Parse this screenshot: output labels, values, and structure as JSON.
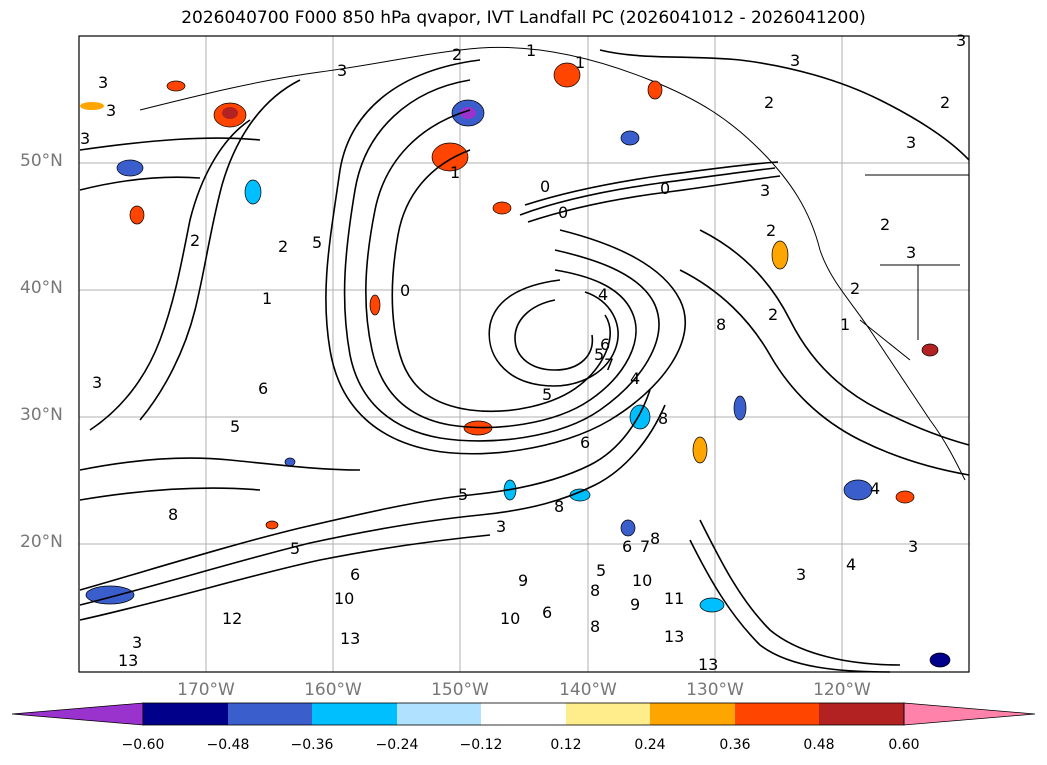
{
  "title": "2026040700 F000 850 hPa qvapor, IVT Landfall PC (2026041012 - 2026041200)",
  "axes": {
    "lat_labels": [
      "50°N",
      "40°N",
      "30°N",
      "20°N"
    ],
    "lon_labels": [
      "170°W",
      "160°W",
      "150°W",
      "140°W",
      "130°W",
      "120°W"
    ]
  },
  "colorbar": {
    "tick_labels": [
      "−0.60",
      "−0.48",
      "−0.36",
      "−0.24",
      "−0.12",
      "0.12",
      "0.24",
      "0.36",
      "0.48",
      "0.60"
    ],
    "colors": [
      "#9a32cd",
      "#00008b",
      "#3a5fcd",
      "#00bfff",
      "#b0e2ff",
      "#ffffff",
      "#ffec8b",
      "#ffa500",
      "#ff4500",
      "#b22222",
      "#ff82ab"
    ]
  },
  "contour_labels": [
    "3",
    "1",
    "2",
    "1",
    "3",
    "3",
    "2",
    "3",
    "1",
    "3",
    "3",
    "3",
    "2",
    "2",
    "2",
    "0",
    "0",
    "0",
    "3",
    "2",
    "1",
    "2",
    "5",
    "3",
    "3",
    "2",
    "0",
    "1",
    "4",
    "2",
    "5",
    "6",
    "4",
    "5",
    "7",
    "8",
    "6",
    "5",
    "6",
    "8",
    "8",
    "3",
    "6",
    "5",
    "4",
    "5",
    "7",
    "8",
    "8",
    "9",
    "6",
    "5",
    "6",
    "10",
    "9",
    "10",
    "8",
    "3",
    "11",
    "12",
    "10",
    "13",
    "8",
    "13",
    "13",
    "13",
    "3",
    "4",
    "3"
  ]
}
